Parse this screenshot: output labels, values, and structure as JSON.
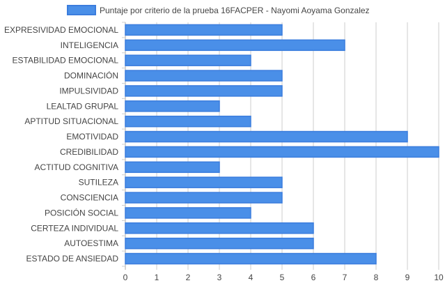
{
  "chart_data": {
    "type": "bar",
    "orientation": "horizontal",
    "categories": [
      "EXPRESIVIDAD EMOCIONAL",
      "INTELIGENCIA",
      "ESTABILIDAD EMOCIONAL",
      "DOMINACIÓN",
      "IMPULSIVIDAD",
      "LEALTAD GRUPAL",
      "APTITUD SITUACIONAL",
      "EMOTIVIDAD",
      "CREDIBILIDAD",
      "ACTITUD COGNITIVA",
      "SUTILEZA",
      "CONSCIENCIA",
      "POSICIÓN SOCIAL",
      "CERTEZA INDIVIDUAL",
      "AUTOESTIMA",
      "ESTADO DE ANSIEDAD"
    ],
    "series": [
      {
        "name": "Puntaje por criterio de la prueba 16FACPER - Nayomi Aoyama Gonzalez",
        "values": [
          5,
          7,
          4,
          5,
          5,
          3,
          4,
          9,
          10,
          3,
          5,
          5,
          4,
          6,
          6,
          8
        ]
      }
    ],
    "xlim": [
      0,
      10
    ],
    "xticks": [
      "0",
      "1",
      "2",
      "3",
      "4",
      "5",
      "6",
      "7",
      "8",
      "9",
      "10"
    ],
    "grid": true,
    "legend_position": "top",
    "colors": {
      "bar_fill": "#4a8fe8",
      "bar_stroke": "#3b7ddd",
      "grid": "#cccccc",
      "text": "#444444"
    }
  }
}
